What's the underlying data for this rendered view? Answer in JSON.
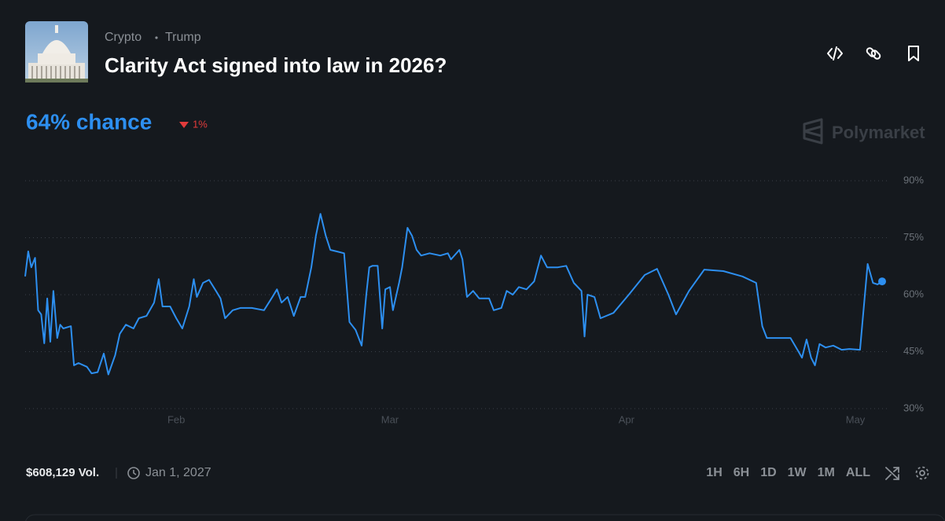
{
  "header": {
    "tags": [
      "Crypto",
      "Trump"
    ],
    "title": "Clarity Act signed into law in 2026?"
  },
  "chance": {
    "label": "64% chance",
    "change": "1%"
  },
  "brand": "Polymarket",
  "chart_data": {
    "type": "line",
    "color": "#2d8ff0",
    "x": [
      11.2,
      11.6,
      12.0,
      12.5,
      12.9,
      13.3,
      13.7,
      14.1,
      14.5,
      14.9,
      15.4,
      15.8,
      16.2,
      17.2,
      17.6,
      18.2,
      19.3,
      19.9,
      20.7,
      21.5,
      22.1,
      23.0,
      23.6,
      24.4,
      25.4,
      26.1,
      27.1,
      28.1,
      28.7,
      29.2,
      30.2,
      31.0,
      31.8,
      32.7,
      33.3,
      33.7,
      34.5,
      35.3,
      36.2,
      36.8,
      37.4,
      38.4,
      39.4,
      40.9,
      42.5,
      43.6,
      44.2,
      44.8,
      45.6,
      46.4,
      47.3,
      47.9,
      48.7,
      49.3,
      49.9,
      50.6,
      51.2,
      52.0,
      53.0,
      53.7,
      54.5,
      55.3,
      55.9,
      56.3,
      56.7,
      57.4,
      58.0,
      58.4,
      59.0,
      59.4,
      60.2,
      60.6,
      61.3,
      61.9,
      62.5,
      63.1,
      64.2,
      65.6,
      66.6,
      67.0,
      68.1,
      68.5,
      69.1,
      69.9,
      70.7,
      72.0,
      72.6,
      73.6,
      74.3,
      75.1,
      75.9,
      76.9,
      77.9,
      78.8,
      79.6,
      81.0,
      82.1,
      83.1,
      84.1,
      84.5,
      84.9,
      85.8,
      86.6,
      88.3,
      90.3,
      92.4,
      94.0,
      95.5,
      96.5,
      98.2,
      100.2,
      102.7,
      105.2,
      107.0,
      107.8,
      108.4,
      111.5,
      112.4,
      113.0,
      113.6,
      114.2,
      114.7,
      115.3,
      116.1,
      117.1,
      118.2,
      119.2,
      120.6,
      121.2,
      121.6,
      122.3,
      122.9,
      123.5
    ],
    "values": [
      64.8,
      71.4,
      67.2,
      69.7,
      55.9,
      54.8,
      47.2,
      59.0,
      47.6,
      61.0,
      48.6,
      52.1,
      51.1,
      51.7,
      41.4,
      42.0,
      41.0,
      39.3,
      39.6,
      44.5,
      39.0,
      44.1,
      49.7,
      52.1,
      51.1,
      53.8,
      54.4,
      57.9,
      64.1,
      56.9,
      56.9,
      53.8,
      51.1,
      56.9,
      64.1,
      59.4,
      63.1,
      63.9,
      61.0,
      59.0,
      53.8,
      55.9,
      56.5,
      56.5,
      55.9,
      59.4,
      61.4,
      57.9,
      59.4,
      54.4,
      59.4,
      59.4,
      67.2,
      75.5,
      81.3,
      75.5,
      71.8,
      71.4,
      70.9,
      52.8,
      50.7,
      46.6,
      60.0,
      67.2,
      67.6,
      67.6,
      51.1,
      61.4,
      62.0,
      55.9,
      63.1,
      67.2,
      77.6,
      75.5,
      71.8,
      70.3,
      70.9,
      70.3,
      70.9,
      69.3,
      71.8,
      69.3,
      59.4,
      61.0,
      59.0,
      59.0,
      55.9,
      56.5,
      61.0,
      60.0,
      62.0,
      61.4,
      63.5,
      70.3,
      67.2,
      67.2,
      67.6,
      63.1,
      61.0,
      49.0,
      60.0,
      59.4,
      53.8,
      55.2,
      60.0,
      65.2,
      66.8,
      60.0,
      54.8,
      61.0,
      66.6,
      66.2,
      64.8,
      63.1,
      51.7,
      48.6,
      48.6,
      45.5,
      43.4,
      48.2,
      43.4,
      41.4,
      47.0,
      46.1,
      46.6,
      45.5,
      45.7,
      45.5,
      59.0,
      68.1,
      63.1,
      62.7,
      63.5
    ],
    "xlim": [
      11.2,
      123.5
    ],
    "xticks": [
      {
        "value": 31,
        "label": "Feb"
      },
      {
        "value": 59,
        "label": "Mar"
      },
      {
        "value": 90,
        "label": "Apr"
      },
      {
        "value": 120,
        "label": "May"
      }
    ],
    "ylim": [
      30,
      90
    ],
    "yticks": [
      {
        "value": 30,
        "label": "30%"
      },
      {
        "value": 45,
        "label": "45%"
      },
      {
        "value": 60,
        "label": "60%"
      },
      {
        "value": 75,
        "label": "75%"
      },
      {
        "value": 90,
        "label": "90%"
      }
    ],
    "grid": true
  },
  "footer": {
    "volume": "$608,129 Vol.",
    "end_date": "Jan 1, 2027",
    "ranges": [
      "1H",
      "6H",
      "1D",
      "1W",
      "1M",
      "ALL"
    ],
    "selected_range": 5
  }
}
